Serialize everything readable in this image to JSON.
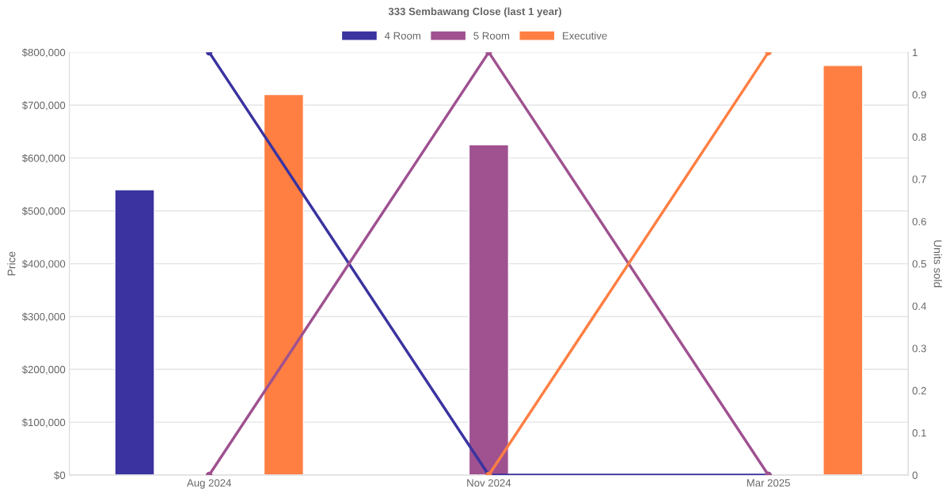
{
  "chart_data": {
    "type": "bar",
    "title": "333 Sembawang Close (last 1 year)",
    "ylabel": "Price",
    "y2label": "Units sold",
    "categories": [
      "Aug 2024",
      "Nov 2024",
      "Mar 2025"
    ],
    "series": [
      {
        "name": "4 Room",
        "color": "#3a33a0",
        "values": [
          540000,
          null,
          null
        ]
      },
      {
        "name": "5 Room",
        "color": "#9f5190",
        "values": [
          null,
          625000,
          null
        ]
      },
      {
        "name": "Executive",
        "color": "#ff7f43",
        "values": [
          720000,
          null,
          775000
        ]
      },
      {
        "type": "line",
        "axis": "y2",
        "color": "#3a33a0",
        "values": [
          1,
          0,
          0
        ]
      },
      {
        "type": "line",
        "axis": "y2",
        "color": "#9f5190",
        "values": [
          0,
          1,
          0
        ]
      },
      {
        "type": "line",
        "axis": "y2",
        "color": "#ff7f43",
        "values": [
          null,
          0,
          1
        ]
      }
    ],
    "ylim": [
      0,
      800000
    ],
    "yticks": [
      {
        "value": 0,
        "label": "$0"
      },
      {
        "value": 100000,
        "label": "$100,000"
      },
      {
        "value": 200000,
        "label": "$200,000"
      },
      {
        "value": 300000,
        "label": "$300,000"
      },
      {
        "value": 400000,
        "label": "$400,000"
      },
      {
        "value": 500000,
        "label": "$500,000"
      },
      {
        "value": 600000,
        "label": "$600,000"
      },
      {
        "value": 700000,
        "label": "$700,000"
      },
      {
        "value": 800000,
        "label": "$800,000"
      }
    ],
    "y2lim": [
      0,
      1
    ],
    "y2ticks": [
      0,
      0.1,
      0.2,
      0.3,
      0.4,
      0.5,
      0.6,
      0.7,
      0.8,
      0.9,
      1
    ],
    "grid": "y",
    "legend": "top",
    "marker": "circle",
    "line_style": "solid"
  }
}
